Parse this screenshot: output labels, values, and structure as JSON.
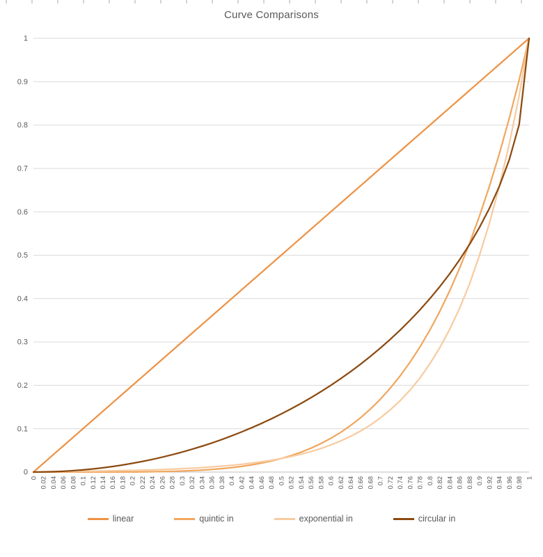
{
  "chart_data": {
    "type": "line",
    "title": "Curve Comparisons",
    "x": [
      0,
      0.02,
      0.04,
      0.06,
      0.08,
      0.1,
      0.12,
      0.14,
      0.16,
      0.18,
      0.2,
      0.22,
      0.24,
      0.26,
      0.28,
      0.3,
      0.32,
      0.34,
      0.36,
      0.38,
      0.4,
      0.42,
      0.44,
      0.46,
      0.48,
      0.5,
      0.52,
      0.54,
      0.56,
      0.58,
      0.6,
      0.62,
      0.64,
      0.66,
      0.68,
      0.7,
      0.72,
      0.74,
      0.76,
      0.78,
      0.8,
      0.82,
      0.84,
      0.86,
      0.88,
      0.9,
      0.92,
      0.94,
      0.96,
      0.98,
      1
    ],
    "series": [
      {
        "name": "linear",
        "color": "#ED9244",
        "values": [
          0,
          0.02,
          0.04,
          0.06,
          0.08,
          0.1,
          0.12,
          0.14,
          0.16,
          0.18,
          0.2,
          0.22,
          0.24,
          0.26,
          0.28,
          0.3,
          0.32,
          0.34,
          0.36,
          0.38,
          0.4,
          0.42,
          0.44,
          0.46,
          0.48,
          0.5,
          0.52,
          0.54,
          0.56,
          0.58,
          0.6,
          0.62,
          0.64,
          0.66,
          0.68,
          0.7,
          0.72,
          0.74,
          0.76,
          0.78,
          0.8,
          0.82,
          0.84,
          0.86,
          0.88,
          0.9,
          0.92,
          0.94,
          0.96,
          0.98,
          1
        ]
      },
      {
        "name": "quintic in",
        "color": "#F0A75F",
        "values": [
          0,
          0,
          0,
          0,
          0,
          0,
          0,
          0.0001,
          0.0001,
          0.0002,
          0.0003,
          0.0005,
          0.0008,
          0.0012,
          0.0017,
          0.0024,
          0.0034,
          0.0045,
          0.006,
          0.0079,
          0.0102,
          0.0131,
          0.0165,
          0.0206,
          0.0255,
          0.0313,
          0.038,
          0.0459,
          0.0551,
          0.0657,
          0.0778,
          0.0916,
          0.1074,
          0.1252,
          0.1454,
          0.1681,
          0.1935,
          0.2219,
          0.2536,
          0.2887,
          0.3277,
          0.3707,
          0.4182,
          0.4704,
          0.5277,
          0.5905,
          0.6591,
          0.7339,
          0.8154,
          0.9039,
          1
        ]
      },
      {
        "name": "exponential in",
        "color": "#F7CBA0",
        "values": [
          0,
          0.0011,
          0.0013,
          0.0015,
          0.0017,
          0.002,
          0.0022,
          0.0026,
          0.003,
          0.0034,
          0.0039,
          0.0045,
          0.0051,
          0.0059,
          0.0068,
          0.0078,
          0.009,
          0.0103,
          0.0118,
          0.0136,
          0.0156,
          0.0179,
          0.0206,
          0.0236,
          0.0271,
          0.0313,
          0.0359,
          0.0412,
          0.0473,
          0.0543,
          0.0625,
          0.0717,
          0.0824,
          0.0945,
          0.1085,
          0.125,
          0.1435,
          0.1647,
          0.1891,
          0.217,
          0.25,
          0.287,
          0.3294,
          0.3781,
          0.434,
          0.5,
          0.574,
          0.6588,
          0.7562,
          0.868,
          1
        ]
      },
      {
        "name": "circular in",
        "color": "#8C4A10",
        "values": [
          0,
          0.0002,
          0.0008,
          0.0018,
          0.0032,
          0.005,
          0.0072,
          0.0098,
          0.0129,
          0.0163,
          0.0202,
          0.0245,
          0.0292,
          0.0344,
          0.04,
          0.0461,
          0.0526,
          0.0596,
          0.067,
          0.075,
          0.0835,
          0.0925,
          0.102,
          0.1121,
          0.1227,
          0.134,
          0.1458,
          0.1583,
          0.1715,
          0.1854,
          0.2,
          0.2154,
          0.2316,
          0.2487,
          0.2668,
          0.2859,
          0.306,
          0.3274,
          0.3501,
          0.3742,
          0.4,
          0.4276,
          0.4574,
          0.4897,
          0.525,
          0.5641,
          0.6081,
          0.6588,
          0.72,
          0.801,
          1
        ]
      }
    ],
    "layout": {
      "xlim": [
        0,
        1
      ],
      "ylim": [
        0,
        1
      ],
      "x_tick_step": 0.02,
      "y_tick_step": 0.1,
      "grid": "horizontal",
      "grid_color": "#D9D9D9",
      "axis_line_color": "#BFBFBF",
      "axis_text_color": "#595959",
      "title_color": "#595959",
      "legend_position": "bottom",
      "x_tick_label_rotation": -90
    }
  }
}
